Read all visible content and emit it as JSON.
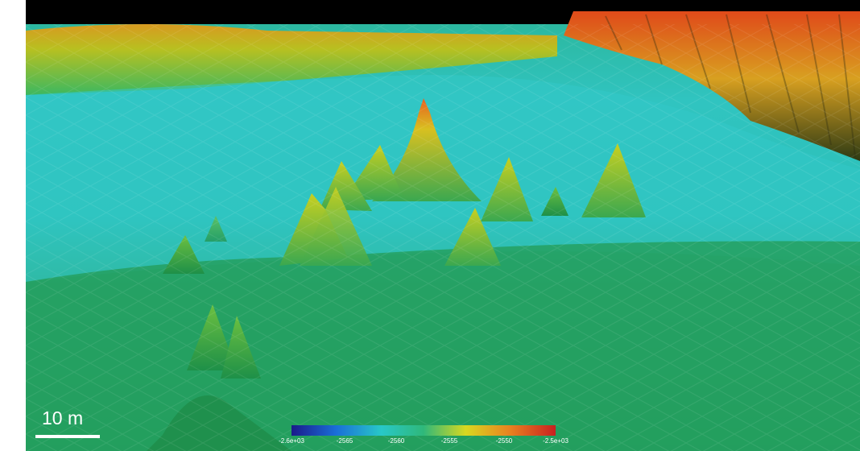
{
  "scale_bar": {
    "label": "10 m"
  },
  "colorbar": {
    "tick_labels": [
      "-2.6e+03",
      "-2565",
      "-2560",
      "-2555",
      "-2550",
      "-2.5e+03"
    ],
    "colors": [
      "#1a1a8a",
      "#1a6fd8",
      "#28c8c8",
      "#2fb87a",
      "#d8d820",
      "#e88020",
      "#c82020"
    ]
  }
}
